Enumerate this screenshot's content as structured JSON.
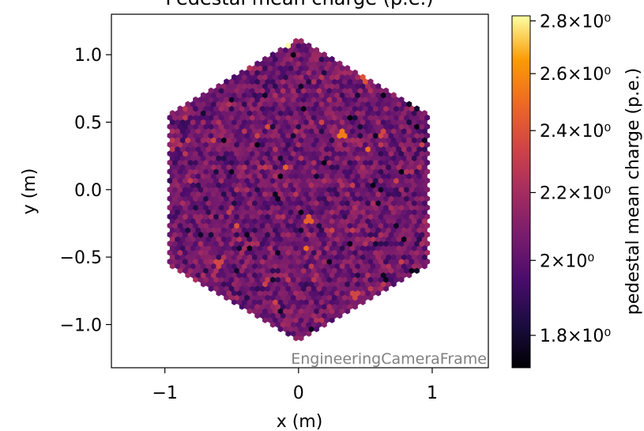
{
  "chart_data": {
    "type": "heatmap",
    "title": "Pedestal mean charge (p.e.)",
    "xlabel": "x  (m)",
    "ylabel": "y  (m)",
    "xlim": [
      -1.4,
      1.42
    ],
    "ylim": [
      -1.32,
      1.3
    ],
    "x_ticks": [
      {
        "value": -1,
        "label": "−1"
      },
      {
        "value": 0,
        "label": "0"
      },
      {
        "value": 1,
        "label": "1"
      }
    ],
    "y_ticks": [
      {
        "value": 1.0,
        "label": "1.0"
      },
      {
        "value": 0.5,
        "label": "0.5"
      },
      {
        "value": 0.0,
        "label": "0.0"
      },
      {
        "value": -0.5,
        "label": "−0.5"
      },
      {
        "value": -1.0,
        "label": "−1.0"
      }
    ],
    "annotation": "EngineeringCameraFrame",
    "grid": false,
    "camera": {
      "shape": "hexagon",
      "circumradius_m": 1.13,
      "pixel_pitch_m": 0.0385,
      "value_range": [
        1.75,
        2.85
      ],
      "typical_value": 2.05,
      "notable_pixels": [
        {
          "x": -0.1,
          "y": 1.06,
          "value": 2.82
        },
        {
          "x": 0.33,
          "y": 0.42,
          "value": 2.55
        },
        {
          "x": 0.52,
          "y": 0.29,
          "value": 2.5
        },
        {
          "x": 0.08,
          "y": -0.22,
          "value": 2.45
        },
        {
          "x": 0.06,
          "y": -0.44,
          "value": 2.5
        },
        {
          "x": -0.1,
          "y": 0.16,
          "value": 2.45
        },
        {
          "x": 0.5,
          "y": 0.82,
          "value": 2.4
        },
        {
          "x": -0.45,
          "y": -0.27,
          "value": 2.4
        },
        {
          "x": 0.62,
          "y": 0.42,
          "value": 2.35
        },
        {
          "x": -0.6,
          "y": -0.55,
          "value": 2.35
        },
        {
          "x": 0.42,
          "y": -0.78,
          "value": 2.35
        },
        {
          "x": -0.16,
          "y": -0.05,
          "value": 1.77
        },
        {
          "x": 0.64,
          "y": 0.7,
          "value": 1.76
        },
        {
          "x": -1.08,
          "y": 0.33,
          "value": 1.78
        },
        {
          "x": 0.65,
          "y": -0.65,
          "value": 1.77
        },
        {
          "x": -1.05,
          "y": -0.46,
          "value": 1.76
        },
        {
          "x": 0.85,
          "y": 0.65,
          "value": 1.78
        },
        {
          "x": 0.63,
          "y": 0.0,
          "value": 1.78
        },
        {
          "x": -0.5,
          "y": 0.13,
          "value": 1.77
        },
        {
          "x": -0.12,
          "y": -0.9,
          "value": 1.79
        }
      ]
    },
    "colorbar": {
      "label": "pedestal mean charge (p.e.)",
      "colormap": "inferno",
      "scale": "log",
      "range": [
        1.72,
        2.82
      ],
      "ticks": [
        {
          "value": 1.8,
          "label": "1.8×10⁰"
        },
        {
          "value": 2.0,
          "label": "2×10⁰"
        },
        {
          "value": 2.2,
          "label": "2.2×10⁰"
        },
        {
          "value": 2.4,
          "label": "2.4×10⁰"
        },
        {
          "value": 2.6,
          "label": "2.6×10⁰"
        },
        {
          "value": 2.8,
          "label": "2.8×10⁰"
        }
      ]
    }
  }
}
